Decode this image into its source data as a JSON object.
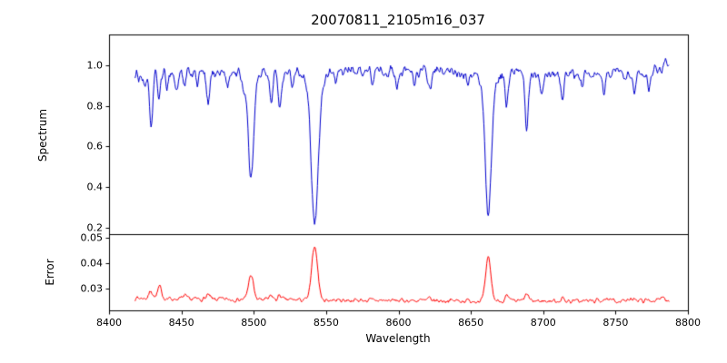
{
  "figure": {
    "title": "20070811_2105m16_037",
    "xlabel": "Wavelength",
    "background": "#ffffff",
    "axis_color": "#000000"
  },
  "chart_data": [
    {
      "type": "line",
      "name": "spectrum",
      "title": "20070811_2105m16_037",
      "xlabel": "Wavelength",
      "ylabel": "Spectrum",
      "color": "#0000cd",
      "xlim": [
        8400,
        8800
      ],
      "ylim": [
        0.17,
        1.15
      ],
      "xticks": [
        8400,
        8450,
        8500,
        8550,
        8600,
        8650,
        8700,
        8750,
        8800
      ],
      "xtick_labels": [
        "8400",
        "8450",
        "8500",
        "8550",
        "8600",
        "8650",
        "8700",
        "8750",
        "8800"
      ],
      "yticks": [
        {
          "v": 1.0,
          "label": "1.0"
        },
        {
          "v": 0.8,
          "label": "0.8"
        },
        {
          "v": 0.6,
          "label": "0.6"
        },
        {
          "v": 0.4,
          "label": "0.4"
        },
        {
          "v": 0.2,
          "label": "0.2"
        }
      ],
      "grid": false,
      "legend": null,
      "x_range": [
        8418,
        8787
      ],
      "sample_step": 0.5,
      "continuum_anchors": [
        [
          8418,
          0.945
        ],
        [
          8430,
          0.96
        ],
        [
          8450,
          0.962
        ],
        [
          8470,
          0.965
        ],
        [
          8490,
          0.968
        ],
        [
          8510,
          0.97
        ],
        [
          8530,
          0.972
        ],
        [
          8560,
          0.973
        ],
        [
          8590,
          0.97
        ],
        [
          8620,
          0.968
        ],
        [
          8650,
          0.966
        ],
        [
          8680,
          0.964
        ],
        [
          8710,
          0.962
        ],
        [
          8740,
          0.965
        ],
        [
          8765,
          0.968
        ],
        [
          8780,
          0.985
        ],
        [
          8787,
          1.02
        ]
      ],
      "absorption_lines": [
        [
          8424.5,
          0.06,
          0.9
        ],
        [
          8429.0,
          0.28,
          1.1
        ],
        [
          8434.6,
          0.13,
          0.9
        ],
        [
          8440.0,
          0.06,
          0.9
        ],
        [
          8446.5,
          0.09,
          1.0
        ],
        [
          8452.0,
          0.08,
          0.9
        ],
        [
          8461.0,
          0.05,
          0.9
        ],
        [
          8468.4,
          0.16,
          1.2
        ],
        [
          8482.0,
          0.08,
          1.0
        ],
        [
          8493.0,
          0.05,
          0.9
        ],
        [
          8498.0,
          0.45,
          1.7
        ],
        [
          8498.0,
          0.08,
          4.0
        ],
        [
          8512.1,
          0.16,
          1.0
        ],
        [
          8518.1,
          0.2,
          1.1
        ],
        [
          8527.0,
          0.07,
          0.9
        ],
        [
          8542.1,
          0.66,
          2.3
        ],
        [
          8542.1,
          0.1,
          5.5
        ],
        [
          8556.8,
          0.05,
          0.9
        ],
        [
          8582.3,
          0.06,
          0.9
        ],
        [
          8598.8,
          0.07,
          0.9
        ],
        [
          8611.0,
          0.06,
          0.9
        ],
        [
          8621.6,
          0.09,
          1.1
        ],
        [
          8648.5,
          0.06,
          0.9
        ],
        [
          8662.1,
          0.6,
          2.0
        ],
        [
          8662.1,
          0.1,
          4.5
        ],
        [
          8674.8,
          0.16,
          1.1
        ],
        [
          8688.6,
          0.27,
          1.2
        ],
        [
          8699.0,
          0.08,
          1.0
        ],
        [
          8713.2,
          0.12,
          1.1
        ],
        [
          8727.0,
          0.07,
          1.0
        ],
        [
          8742.0,
          0.09,
          1.0
        ],
        [
          8757.0,
          0.06,
          0.9
        ],
        [
          8763.0,
          0.12,
          1.0
        ],
        [
          8773.0,
          0.08,
          1.0
        ]
      ],
      "noise": {
        "seed": 1234,
        "amplitude": 0.04,
        "smooth_halfwidth": 1
      }
    },
    {
      "type": "line",
      "name": "error",
      "ylabel": "Error",
      "color": "#ff0000",
      "xlim": [
        8400,
        8800
      ],
      "ylim": [
        0.0213,
        0.0515
      ],
      "yticks": [
        {
          "v": 0.05,
          "label": "0.05"
        },
        {
          "v": 0.04,
          "label": "0.04"
        },
        {
          "v": 0.03,
          "label": "0.03"
        }
      ],
      "grid": false,
      "legend": null,
      "x_range": [
        8418,
        8787
      ],
      "sample_step": 0.5,
      "baseline_anchors": [
        [
          8418,
          0.0262
        ],
        [
          8450,
          0.0258
        ],
        [
          8500,
          0.0256
        ],
        [
          8550,
          0.0254
        ],
        [
          8600,
          0.0252
        ],
        [
          8650,
          0.0251
        ],
        [
          8700,
          0.025
        ],
        [
          8750,
          0.0251
        ],
        [
          8787,
          0.0253
        ]
      ],
      "emission_peaks": [
        [
          8429.0,
          0.003,
          1.3
        ],
        [
          8435.0,
          0.0045,
          1.4
        ],
        [
          8452.0,
          0.0012,
          1.2
        ],
        [
          8468.4,
          0.0015,
          1.3
        ],
        [
          8498.0,
          0.0098,
          1.7
        ],
        [
          8512.1,
          0.0016,
          1.1
        ],
        [
          8518.1,
          0.0018,
          1.1
        ],
        [
          8542.1,
          0.0215,
          2.0
        ],
        [
          8621.6,
          0.0008,
          1.1
        ],
        [
          8662.1,
          0.0168,
          1.8
        ],
        [
          8674.8,
          0.0018,
          1.1
        ],
        [
          8688.6,
          0.0028,
          1.2
        ],
        [
          8713.2,
          0.001,
          1.1
        ],
        [
          8742.0,
          0.001,
          1.0
        ],
        [
          8763.0,
          0.0014,
          1.0
        ],
        [
          8783.0,
          0.0016,
          1.2
        ]
      ],
      "noise": {
        "seed": 7,
        "amplitude": 0.0013,
        "smooth_halfwidth": 1
      }
    }
  ]
}
